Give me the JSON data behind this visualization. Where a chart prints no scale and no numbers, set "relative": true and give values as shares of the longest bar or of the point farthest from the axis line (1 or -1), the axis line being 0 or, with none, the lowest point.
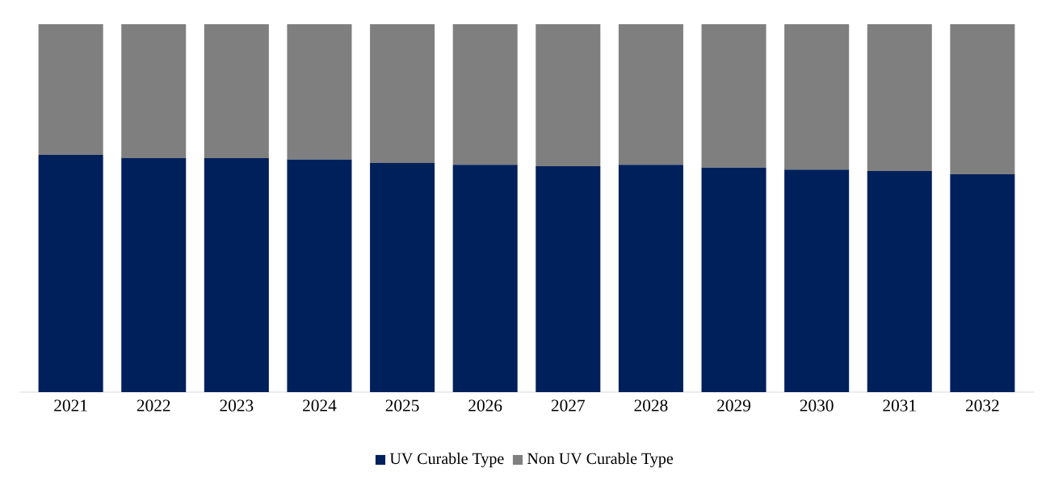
{
  "chart_data": {
    "type": "bar",
    "stacked": true,
    "relative": true,
    "legend": "bottom",
    "categories": [
      "2021",
      "2022",
      "2023",
      "2024",
      "2025",
      "2026",
      "2027",
      "2028",
      "2029",
      "2030",
      "2031",
      "2032"
    ],
    "series": [
      {
        "name": "UV Curable Type",
        "color": "#00205b",
        "values": [
          0.645,
          0.636,
          0.636,
          0.632,
          0.623,
          0.618,
          0.614,
          0.618,
          0.61,
          0.605,
          0.601,
          0.592
        ]
      },
      {
        "name": "Non UV Curable Type",
        "color": "#7f7f7f",
        "values": [
          0.355,
          0.364,
          0.364,
          0.368,
          0.377,
          0.382,
          0.386,
          0.382,
          0.39,
          0.395,
          0.399,
          0.408
        ]
      }
    ]
  }
}
